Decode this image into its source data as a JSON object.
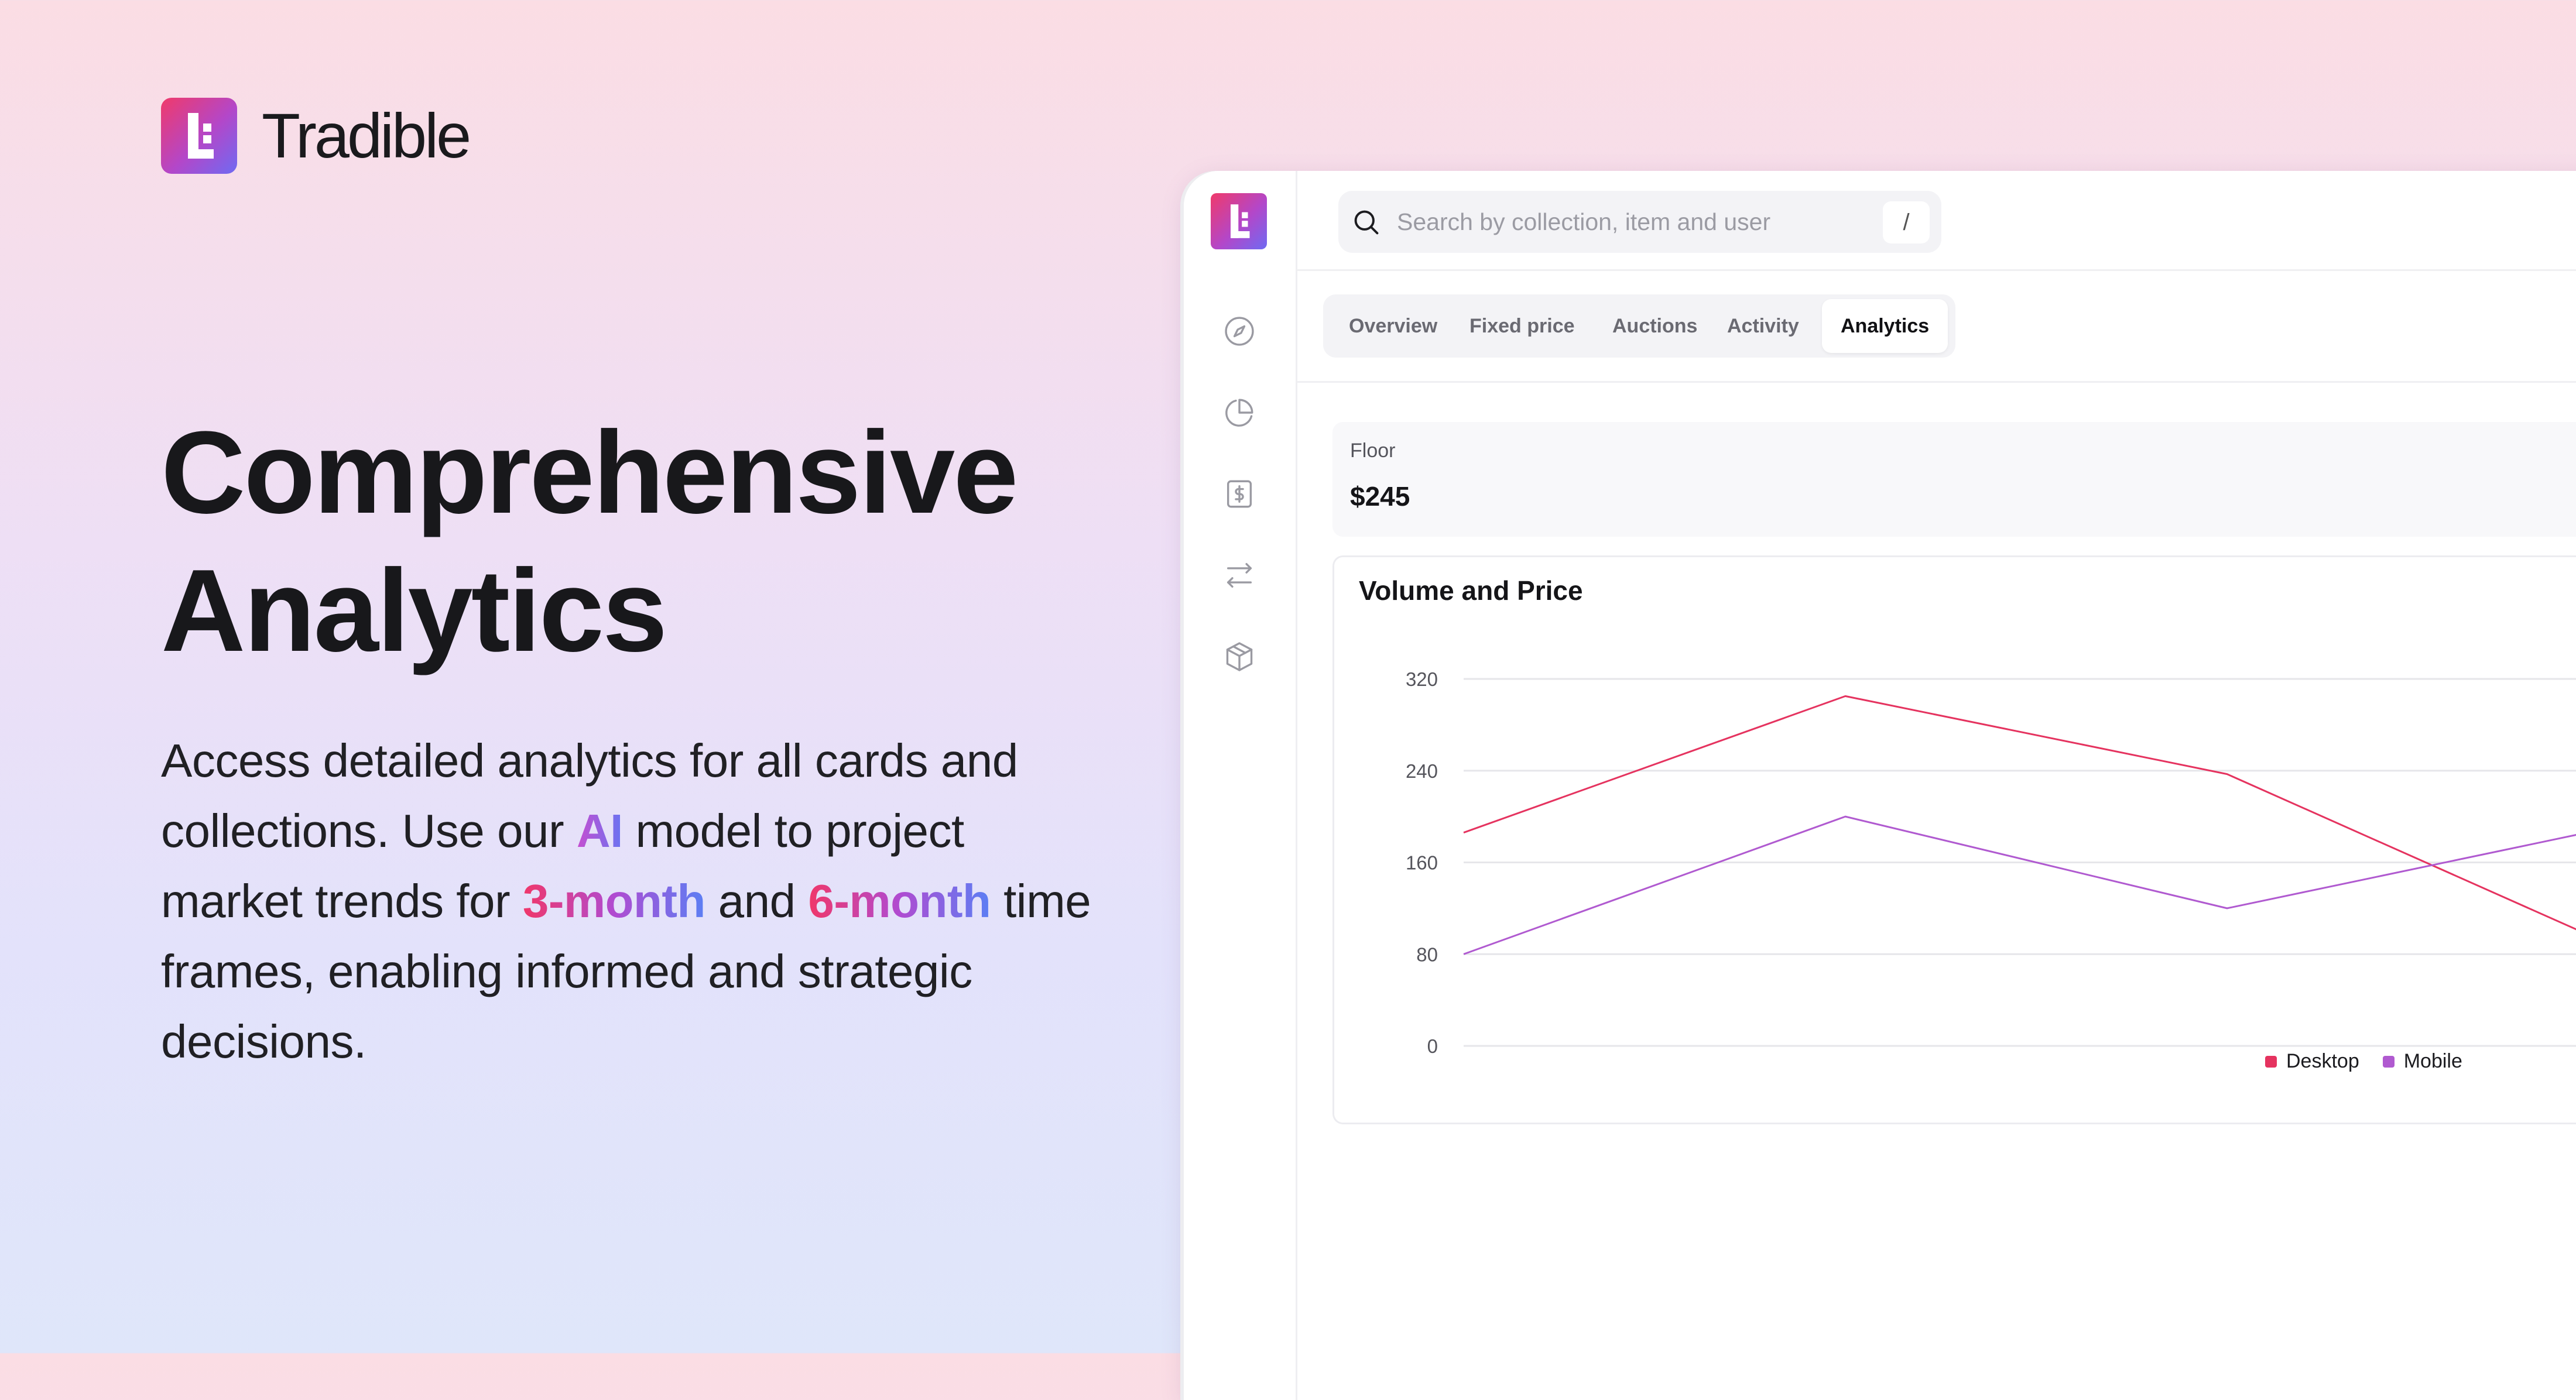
{
  "brand": {
    "name": "Tradible"
  },
  "hero": {
    "headline_line1": "Comprehensive",
    "headline_line2": "Analytics",
    "desc_part1": "Access detailed analytics for all cards and collections. Use our ",
    "desc_ai": "AI",
    "desc_part2": " model to project market trends for ",
    "desc_3m": "3-month",
    "desc_and": " and ",
    "desc_6m": "6-month",
    "desc_part3": " time frames, enabling informed and strategic decisions."
  },
  "sidebar": {
    "icons": [
      "compass-icon",
      "pie-chart-icon",
      "dollar-receipt-icon",
      "swap-arrows-icon",
      "cube-icon"
    ]
  },
  "search": {
    "placeholder": "Search by collection, item and user",
    "shortcut": "/"
  },
  "tabs": [
    {
      "label": "Overview",
      "active": false
    },
    {
      "label": "Fixed price",
      "active": false
    },
    {
      "label": "Auctions",
      "active": false
    },
    {
      "label": "Activity",
      "active": false
    },
    {
      "label": "Analytics",
      "active": true
    }
  ],
  "floor": {
    "label": "Floor",
    "value": "$245"
  },
  "colors": {
    "desktop": "#e5335f",
    "mobile": "#b05ad0",
    "grid": "#e6e6ea",
    "accent_gradient_start": "#f03a6a",
    "accent_gradient_end": "#6f6af2"
  },
  "chart_data": {
    "type": "line",
    "title": "Volume and Price",
    "xlabel": "",
    "ylabel": "",
    "ylim": [
      0,
      320
    ],
    "yticks": [
      0,
      80,
      160,
      240,
      320
    ],
    "grid": true,
    "legend_position": "bottom-right",
    "series": [
      {
        "name": "Desktop",
        "values": [
          186,
          305,
          237,
          89
        ]
      },
      {
        "name": "Mobile",
        "values": [
          80,
          200,
          120,
          190
        ]
      }
    ]
  }
}
